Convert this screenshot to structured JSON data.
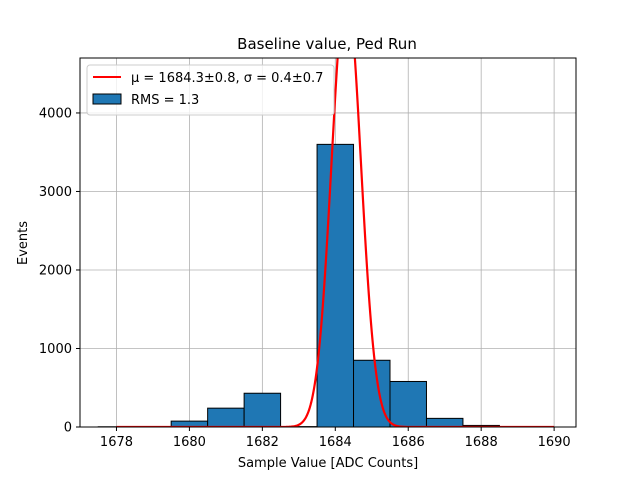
{
  "chart_data": {
    "type": "bar",
    "title": "Baseline value, Ped Run",
    "xlabel": "Sample Value [ADC Counts]",
    "ylabel": "Events",
    "xlim": [
      1677,
      1690.6
    ],
    "ylim": [
      0,
      4700
    ],
    "xticks": [
      1678,
      1680,
      1682,
      1684,
      1686,
      1688,
      1690
    ],
    "yticks": [
      0,
      1000,
      2000,
      3000,
      4000
    ],
    "grid": true,
    "legend_placement": "upper-left",
    "bar_color": "#1f77b4",
    "fit_color": "#ff0000",
    "histogram": {
      "name": "RMS = 1.3",
      "bin_edges": [
        1677.5,
        1678.5,
        1679.5,
        1680.5,
        1681.5,
        1682.5,
        1683.5,
        1684.5,
        1685.5,
        1686.5,
        1687.5,
        1688.5,
        1689.5
      ],
      "values": [
        3,
        5,
        75,
        240,
        430,
        5,
        3600,
        850,
        580,
        110,
        20,
        3
      ]
    },
    "fit": {
      "name": "μ = 1684.3±0.8, σ = 0.4±0.7",
      "mu": 1684.3,
      "sigma": 0.4,
      "amplitude": 5600,
      "x_range": [
        1678,
        1690
      ]
    },
    "legend": [
      "μ = 1684.3±0.8, σ = 0.4±0.7",
      "RMS = 1.3"
    ]
  }
}
